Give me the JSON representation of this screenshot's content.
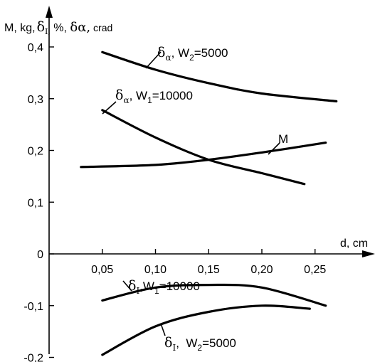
{
  "chart_data": {
    "type": "line",
    "ylabel": {
      "prefix": "M, kg,",
      "delta_i": "δ",
      "delta_i_sub": "I,",
      "middle": " %, ",
      "delta_a": "δα,",
      "unit": " crad"
    },
    "xlabel": "d, cm",
    "x_ticks": [
      {
        "value": 0.05,
        "label": "0,05"
      },
      {
        "value": 0.1,
        "label": "0,10"
      },
      {
        "value": 0.15,
        "label": "0,15"
      },
      {
        "value": 0.2,
        "label": "0,20"
      },
      {
        "value": 0.25,
        "label": "0,25"
      }
    ],
    "y_ticks": [
      {
        "value": 0.4,
        "label": "0,4"
      },
      {
        "value": 0.3,
        "label": "0,3"
      },
      {
        "value": 0.2,
        "label": "0,2"
      },
      {
        "value": 0.1,
        "label": "0,1"
      },
      {
        "value": 0.0,
        "label": "0"
      },
      {
        "value": -0.1,
        "label": "-0,1"
      },
      {
        "value": -0.2,
        "label": "-0,2"
      }
    ],
    "xlim": [
      0,
      0.3
    ],
    "ylim": [
      -0.2,
      0.4
    ],
    "grid": false,
    "series": [
      {
        "id": "da_w2",
        "label": {
          "sym": "δ",
          "sub": "α",
          "text": ", W",
          "wsub": "2",
          "rest": "=5000"
        },
        "points": [
          [
            0.05,
            0.39
          ],
          [
            0.1,
            0.356
          ],
          [
            0.15,
            0.33
          ],
          [
            0.2,
            0.31
          ],
          [
            0.27,
            0.295
          ]
        ]
      },
      {
        "id": "da_w1",
        "label": {
          "sym": "δ",
          "sub": "α",
          "text": ", W",
          "wsub": "1",
          "rest": "=10000"
        },
        "points": [
          [
            0.05,
            0.278
          ],
          [
            0.1,
            0.225
          ],
          [
            0.15,
            0.182
          ],
          [
            0.2,
            0.156
          ],
          [
            0.24,
            0.135
          ]
        ]
      },
      {
        "id": "m",
        "label": {
          "sym": "",
          "sub": "",
          "text": "M",
          "wsub": "",
          "rest": ""
        },
        "points": [
          [
            0.03,
            0.168
          ],
          [
            0.1,
            0.172
          ],
          [
            0.15,
            0.182
          ],
          [
            0.2,
            0.196
          ],
          [
            0.26,
            0.215
          ]
        ]
      },
      {
        "id": "di_w1",
        "label": {
          "sym": "δ",
          "sub": "I",
          "text": ",W",
          "wsub": "1",
          "rest": "=10000"
        },
        "points": [
          [
            0.05,
            -0.09
          ],
          [
            0.1,
            -0.065
          ],
          [
            0.15,
            -0.06
          ],
          [
            0.2,
            -0.065
          ],
          [
            0.26,
            -0.1
          ]
        ]
      },
      {
        "id": "di_w2",
        "label": {
          "sym": "δ",
          "sub": "I",
          "text": ",  W",
          "wsub": "2",
          "rest": "=5000"
        },
        "points": [
          [
            0.05,
            -0.195
          ],
          [
            0.1,
            -0.14
          ],
          [
            0.15,
            -0.112
          ],
          [
            0.2,
            -0.1
          ],
          [
            0.245,
            -0.106
          ]
        ]
      }
    ]
  }
}
